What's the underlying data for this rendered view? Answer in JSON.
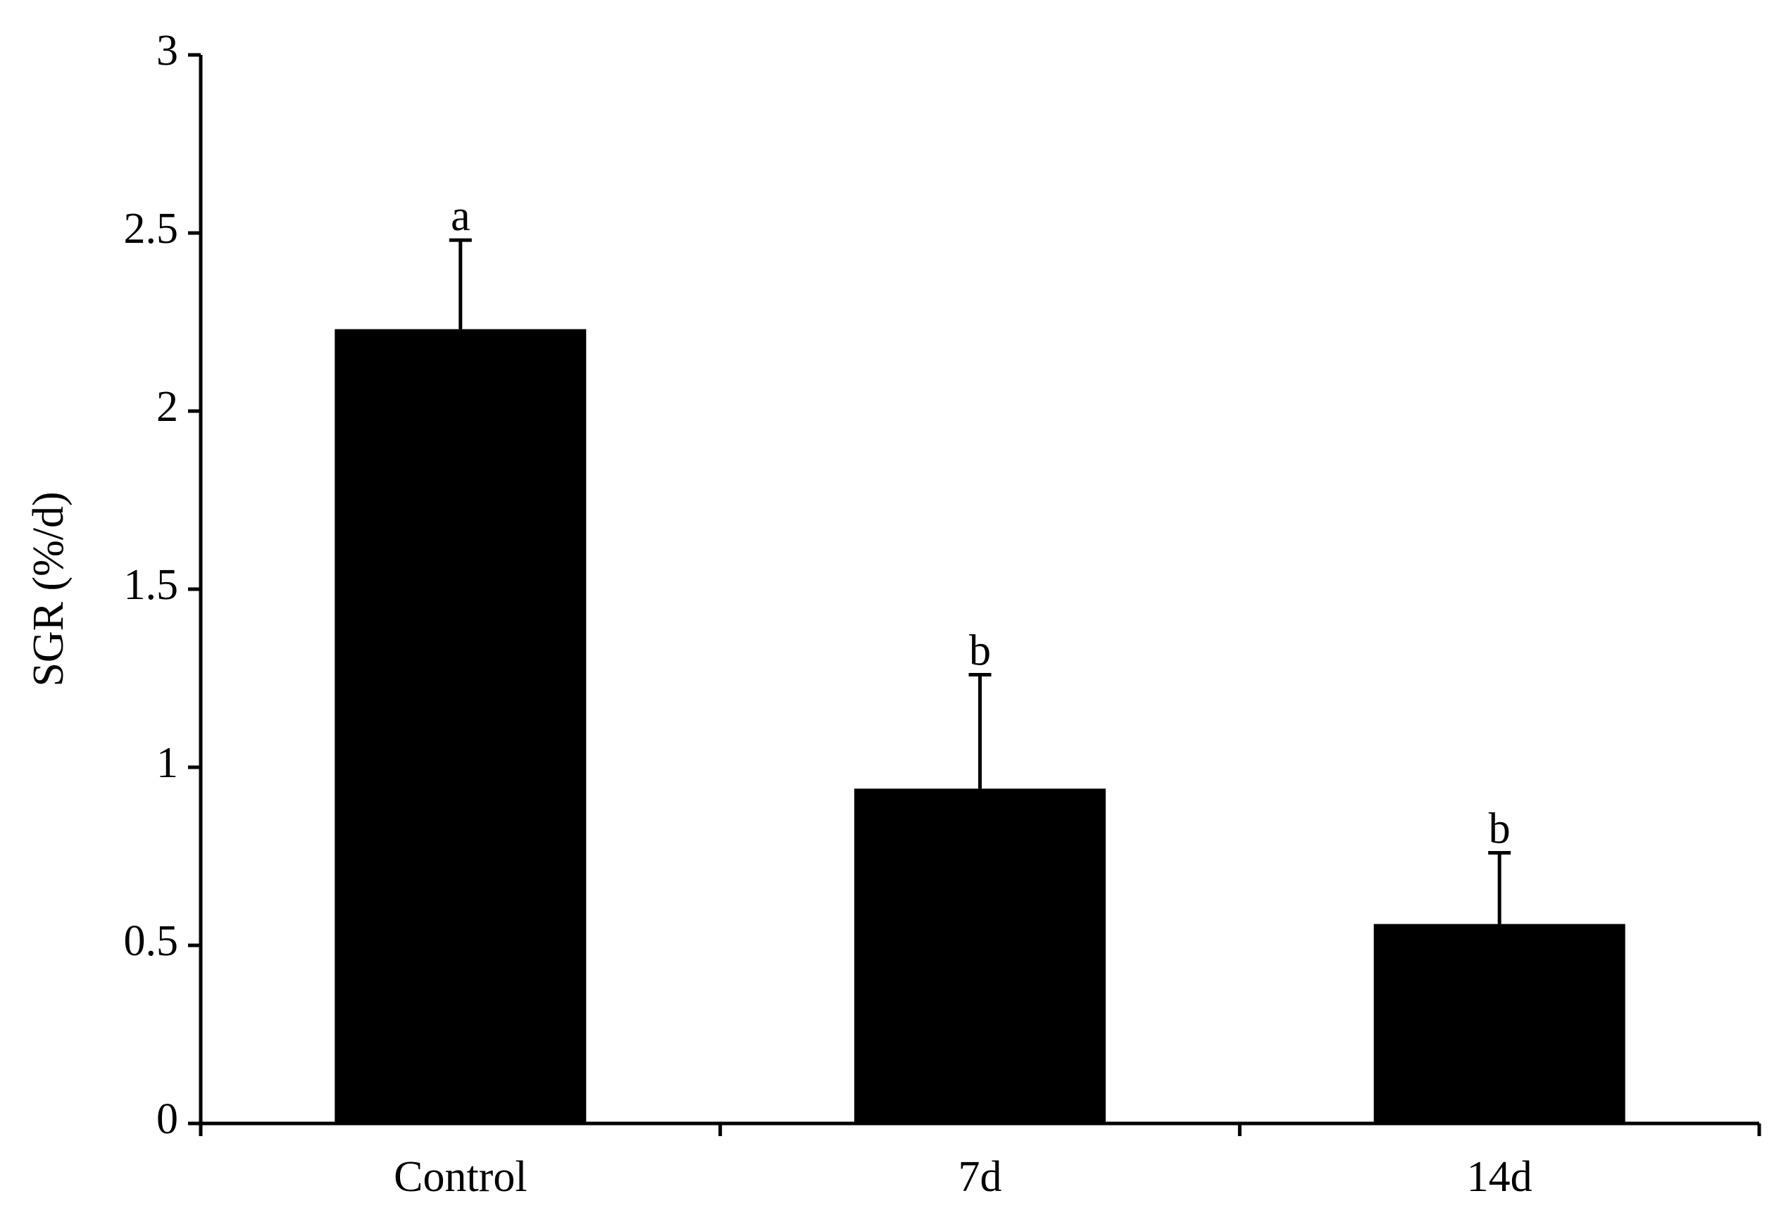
{
  "chart_data": {
    "type": "bar",
    "y_label": "SGR (%/d)",
    "categories": [
      "Control",
      "7d",
      "14d"
    ],
    "values": [
      2.23,
      0.94,
      0.56
    ],
    "errors": [
      0.25,
      0.32,
      0.2
    ],
    "significance": [
      "a",
      "b",
      "b"
    ],
    "color": "#000000",
    "ylim": [
      0,
      3
    ],
    "yticks": [
      0,
      0.5,
      1,
      1.5,
      2,
      2.5,
      3
    ],
    "grid": false
  }
}
